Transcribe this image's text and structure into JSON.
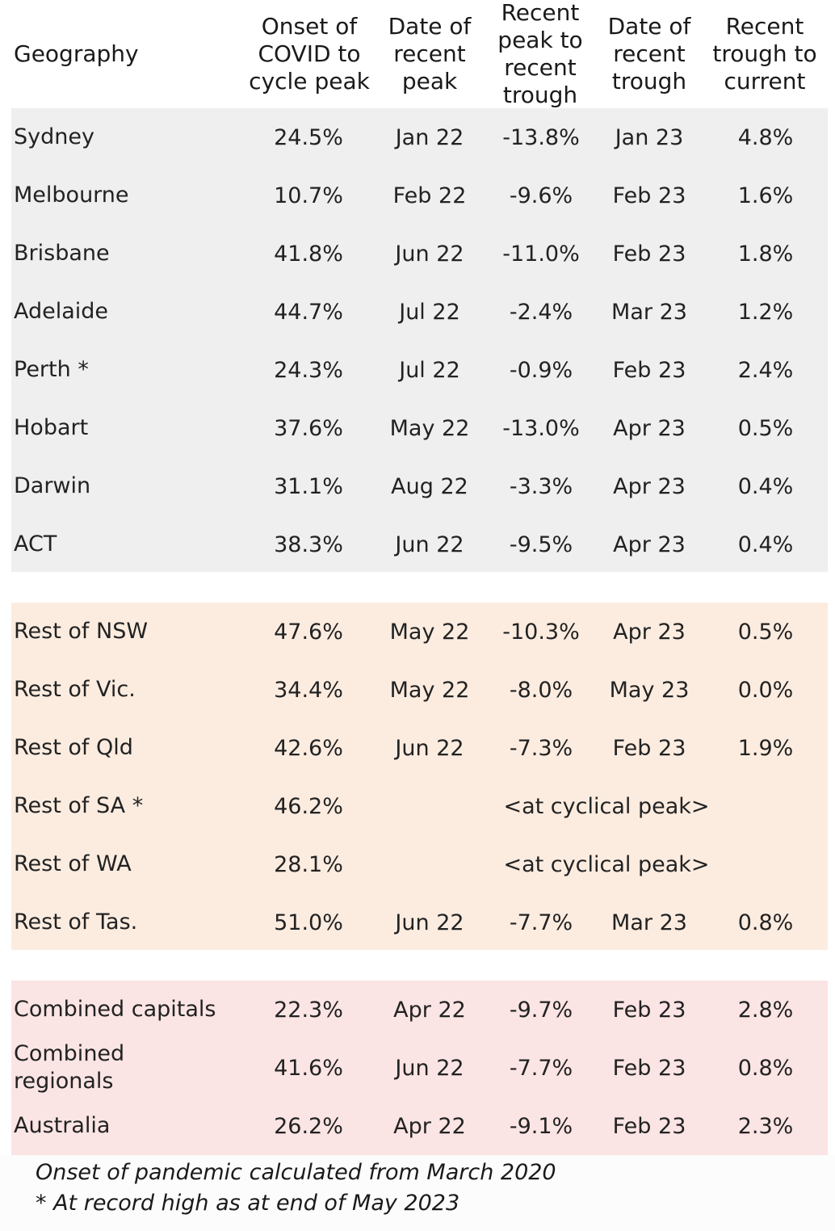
{
  "headers": {
    "geography": "Geography",
    "onset": [
      "Onset of",
      "COVID to",
      "cycle peak"
    ],
    "peak_date": [
      "Date of",
      "recent",
      "peak"
    ],
    "peak_to_trough": [
      "Recent",
      "peak to",
      "recent",
      "trough"
    ],
    "trough_date": [
      "Date of",
      "recent",
      "trough"
    ],
    "trough_to_current": [
      "Recent",
      "trough to",
      "current"
    ]
  },
  "capitals": [
    {
      "geo": "Sydney",
      "onset": "24.5%",
      "peak_date": "Jan 22",
      "drop": "-13.8%",
      "trough_date": "Jan 23",
      "current": "4.8%"
    },
    {
      "geo": "Melbourne",
      "onset": "10.7%",
      "peak_date": "Feb 22",
      "drop": "-9.6%",
      "trough_date": "Feb 23",
      "current": "1.6%"
    },
    {
      "geo": "Brisbane",
      "onset": "41.8%",
      "peak_date": "Jun 22",
      "drop": "-11.0%",
      "trough_date": "Feb 23",
      "current": "1.8%"
    },
    {
      "geo": "Adelaide",
      "onset": "44.7%",
      "peak_date": "Jul 22",
      "drop": "-2.4%",
      "trough_date": "Mar 23",
      "current": "1.2%"
    },
    {
      "geo": "Perth *",
      "onset": "24.3%",
      "peak_date": "Jul 22",
      "drop": "-0.9%",
      "trough_date": "Feb 23",
      "current": "2.4%"
    },
    {
      "geo": "Hobart",
      "onset": "37.6%",
      "peak_date": "May 22",
      "drop": "-13.0%",
      "trough_date": "Apr 23",
      "current": "0.5%"
    },
    {
      "geo": "Darwin",
      "onset": "31.1%",
      "peak_date": "Aug 22",
      "drop": "-3.3%",
      "trough_date": "Apr 23",
      "current": "0.4%"
    },
    {
      "geo": "ACT",
      "onset": "38.3%",
      "peak_date": "Jun 22",
      "drop": "-9.5%",
      "trough_date": "Apr 23",
      "current": "0.4%"
    }
  ],
  "regionals": [
    {
      "geo": "Rest of NSW",
      "onset": "47.6%",
      "peak_date": "May 22",
      "drop": "-10.3%",
      "trough_date": "Apr 23",
      "current": "0.5%"
    },
    {
      "geo": "Rest of Vic.",
      "onset": "34.4%",
      "peak_date": "May 22",
      "drop": "-8.0%",
      "trough_date": "May 23",
      "current": "0.0%"
    },
    {
      "geo": "Rest of Qld",
      "onset": "42.6%",
      "peak_date": "Jun 22",
      "drop": "-7.3%",
      "trough_date": "Feb 23",
      "current": "1.9%"
    },
    {
      "geo": "Rest of SA *",
      "onset": "46.2%",
      "note": "<at cyclical peak>"
    },
    {
      "geo": "Rest of WA",
      "onset": "28.1%",
      "note": "<at cyclical peak>"
    },
    {
      "geo": "Rest of Tas.",
      "onset": "51.0%",
      "peak_date": "Jun 22",
      "drop": "-7.7%",
      "trough_date": "Mar 23",
      "current": "0.8%"
    }
  ],
  "aggregates": [
    {
      "geo": "Combined capitals",
      "onset": "22.3%",
      "peak_date": "Apr 22",
      "drop": "-9.7%",
      "trough_date": "Feb 23",
      "current": "2.8%"
    },
    {
      "geo": "Combined regionals",
      "onset": "41.6%",
      "peak_date": "Jun 22",
      "drop": "-7.7%",
      "trough_date": "Feb 23",
      "current": "0.8%"
    },
    {
      "geo": "Australia",
      "onset": "26.2%",
      "peak_date": "Apr 22",
      "drop": "-9.1%",
      "trough_date": "Feb 23",
      "current": "2.3%"
    }
  ],
  "notes": {
    "onset": "Onset of pandemic calculated from March 2020",
    "record": "* At record high as at end of May 2023"
  },
  "colors": {
    "capitals_bg": "#efefef",
    "regionals_bg": "#fcece0",
    "aggregates_bg": "#fbe4e4"
  }
}
